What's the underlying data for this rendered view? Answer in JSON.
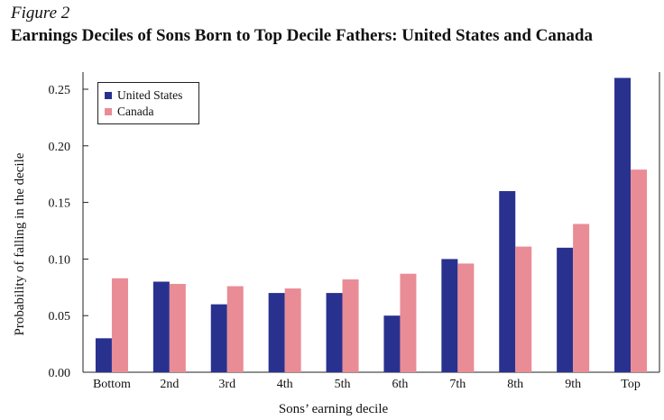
{
  "figure_label": "Figure 2",
  "chart_data": {
    "type": "bar",
    "title": "Earnings Deciles of Sons Born to Top Decile Fathers: United States and Canada",
    "xlabel": "Sons’ earning decile",
    "ylabel": "Probability of falling in the decile",
    "categories": [
      "Bottom",
      "2nd",
      "3rd",
      "4th",
      "5th",
      "6th",
      "7th",
      "8th",
      "9th",
      "Top"
    ],
    "series": [
      {
        "name": "United States",
        "color": "#29318f",
        "values": [
          0.03,
          0.08,
          0.06,
          0.07,
          0.07,
          0.05,
          0.1,
          0.16,
          0.11,
          0.26
        ]
      },
      {
        "name": "Canada",
        "color": "#e98c96",
        "values": [
          0.083,
          0.078,
          0.076,
          0.074,
          0.082,
          0.087,
          0.096,
          0.111,
          0.131,
          0.179
        ]
      }
    ],
    "yticks": [
      "0.00",
      "0.05",
      "0.10",
      "0.15",
      "0.20",
      "0.25"
    ],
    "ylim": [
      0,
      0.26
    ],
    "legend_position": "top-left",
    "grid": false
  }
}
